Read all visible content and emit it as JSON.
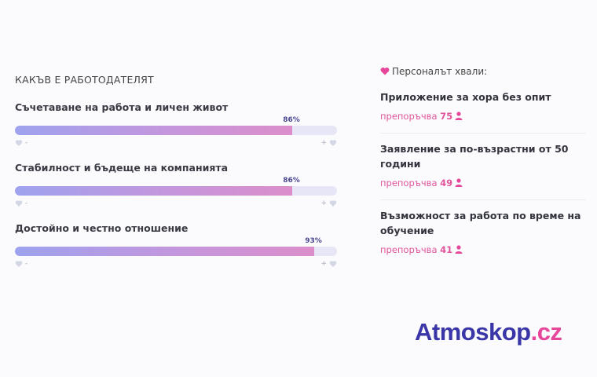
{
  "section": {
    "title": "КАКЪВ Е РАБОТОДАТЕЛЯТ"
  },
  "metrics": [
    {
      "label": "Съчетаване на работа и личен живот",
      "percent_text": "86%",
      "value": 0.86
    },
    {
      "label": "Стабилност и бъдеще на компанията",
      "percent_text": "86%",
      "value": 0.86
    },
    {
      "label": "Достойно и честно отношение",
      "percent_text": "93%",
      "value": 0.93
    }
  ],
  "scale": {
    "min_label": "-",
    "max_label": "+"
  },
  "praise": {
    "heading": "Персоналът хвали:",
    "items": [
      {
        "title": "Приложение за хора без опит",
        "rec_prefix": "препоръчва",
        "count": "75"
      },
      {
        "title": "Заявление за по-възрастни от 50 години",
        "rec_prefix": "препоръчва",
        "count": "49"
      },
      {
        "title": "Възможност за работа по време на обучение",
        "rec_prefix": "препоръчва",
        "count": "41"
      }
    ]
  },
  "logo": {
    "part1": "Atmoskop",
    "part2": ".cz"
  },
  "colors": {
    "accent": "#e6479a",
    "brand": "#3a36a8",
    "pct_text": "#4a4790"
  },
  "icons": {
    "praise": "heart-icon",
    "recommend": "person-icon",
    "scale": "heart-outline-icon"
  }
}
